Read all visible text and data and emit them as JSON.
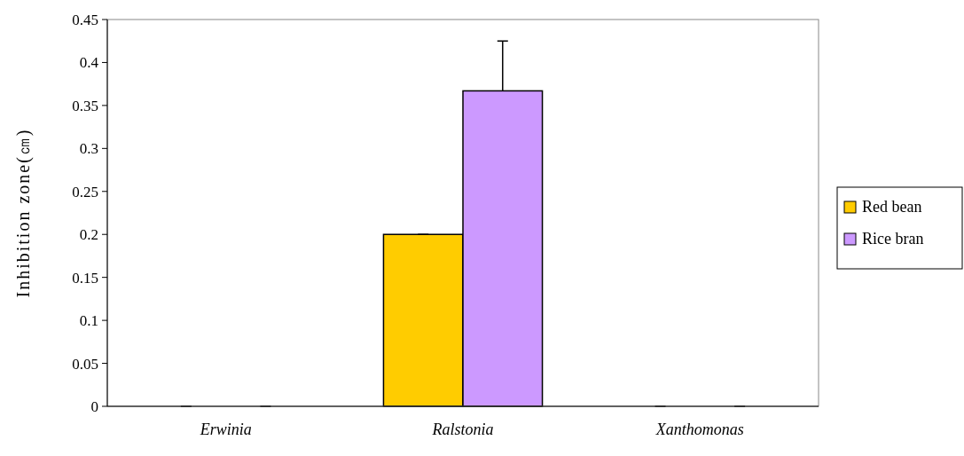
{
  "chart_data": {
    "type": "bar",
    "ylabel": "Inhibition zone(㎝)",
    "categories": [
      "Erwinia",
      "Ralstonia",
      "Xanthomonas"
    ],
    "series": [
      {
        "name": "Red bean",
        "color": "#ffcc00",
        "values": [
          0,
          0.2,
          0
        ],
        "errors": [
          0,
          0,
          0
        ]
      },
      {
        "name": "Rice bran",
        "color": "#cc99ff",
        "values": [
          0,
          0.367,
          0
        ],
        "errors": [
          0,
          0.058,
          0
        ]
      }
    ],
    "ylim": [
      0,
      0.45
    ],
    "yticks": [
      0,
      0.05,
      0.1,
      0.15,
      0.2,
      0.25,
      0.3,
      0.35,
      0.4,
      0.45
    ],
    "grid": false,
    "legend": "right"
  }
}
